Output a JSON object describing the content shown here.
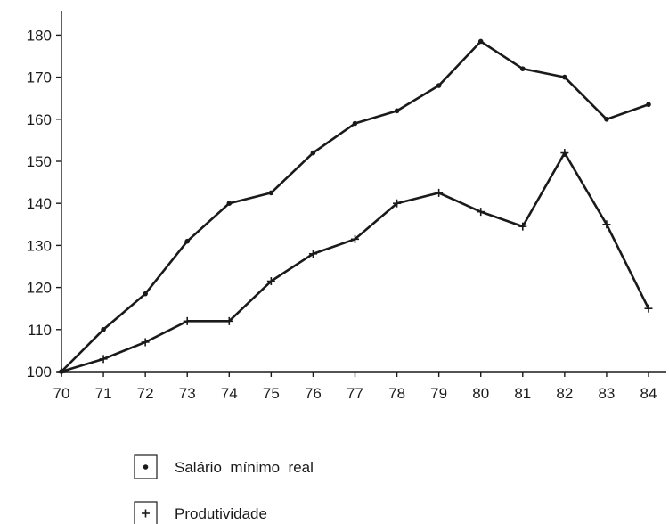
{
  "chart_data": {
    "type": "line",
    "title": "",
    "xlabel": "",
    "ylabel": "",
    "categories": [
      "70",
      "71",
      "72",
      "73",
      "74",
      "75",
      "76",
      "77",
      "78",
      "79",
      "80",
      "81",
      "82",
      "83",
      "84"
    ],
    "ylim": [
      100,
      184
    ],
    "yticks": [
      100,
      110,
      120,
      130,
      140,
      150,
      160,
      170,
      180
    ],
    "grid": false,
    "legend_position": "bottom-left",
    "series": [
      {
        "name": "Salário  mínimo  real",
        "marker": "dot",
        "values": [
          100,
          110,
          118.5,
          131,
          140,
          142.5,
          152,
          159,
          162,
          168,
          178.5,
          172,
          170,
          160,
          163.5
        ]
      },
      {
        "name": "Produtividade",
        "marker": "plus",
        "values": [
          100,
          103,
          107,
          112,
          112,
          121.5,
          128,
          131.5,
          140,
          142.5,
          138,
          134.5,
          152,
          135,
          115
        ]
      }
    ]
  }
}
